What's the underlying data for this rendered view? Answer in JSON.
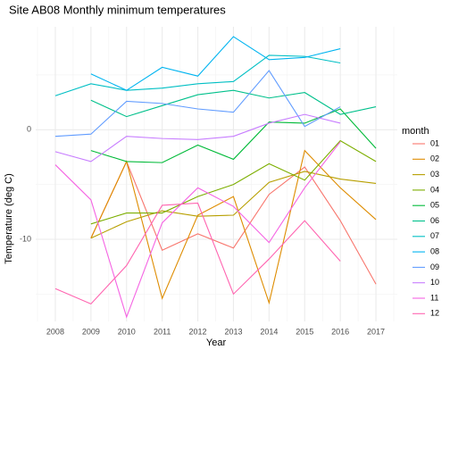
{
  "chart_data": {
    "type": "line",
    "title": "Site AB08 Monthly minimum temperatures",
    "xlabel": "Year",
    "ylabel": "Temperature (deg C)",
    "legend_title": "month",
    "legend": "right",
    "grid": true,
    "x": [
      2008,
      2009,
      2010,
      2011,
      2012,
      2013,
      2014,
      2015,
      2016,
      2017
    ],
    "xlim": [
      2007.45,
      2017.6
    ],
    "xticks": [
      2008,
      2009,
      2010,
      2011,
      2012,
      2013,
      2014,
      2015,
      2016,
      2017
    ],
    "ylim": [
      -17.5,
      9.4
    ],
    "yticks": [
      -10,
      0
    ],
    "series": [
      {
        "name": "01",
        "color": "#F8766D",
        "values": [
          null,
          -9.9,
          -2.9,
          -11.0,
          -9.5,
          -10.8,
          -5.9,
          -3.4,
          -8.3,
          -14.1
        ]
      },
      {
        "name": "02",
        "color": "#DE8C00",
        "values": [
          null,
          -9.9,
          -2.9,
          -15.4,
          -7.8,
          -6.1,
          -15.8,
          -1.9,
          -5.3,
          -8.2
        ]
      },
      {
        "name": "03",
        "color": "#B79F00",
        "values": [
          null,
          -9.9,
          -8.4,
          -7.4,
          -7.9,
          -7.8,
          -4.8,
          -3.8,
          -4.5,
          -4.9
        ]
      },
      {
        "name": "04",
        "color": "#7CAE00",
        "values": [
          null,
          -8.6,
          -7.6,
          -7.6,
          -6.1,
          -5.0,
          -3.1,
          -4.6,
          -1.0,
          -2.9
        ]
      },
      {
        "name": "05",
        "color": "#00BA38",
        "values": [
          null,
          -1.9,
          -2.9,
          -3.0,
          -1.4,
          -2.7,
          0.7,
          0.6,
          1.9,
          -1.7
        ]
      },
      {
        "name": "06",
        "color": "#00C08B",
        "values": [
          null,
          2.7,
          1.2,
          2.2,
          3.2,
          3.6,
          2.9,
          3.4,
          1.4,
          2.1
        ]
      },
      {
        "name": "07",
        "color": "#00BFC4",
        "values": [
          3.1,
          4.2,
          3.6,
          3.8,
          4.2,
          4.4,
          6.8,
          6.7,
          6.1,
          null
        ]
      },
      {
        "name": "08",
        "color": "#00B4F0",
        "values": [
          null,
          5.1,
          3.6,
          5.7,
          4.9,
          8.5,
          6.4,
          6.6,
          7.4,
          null
        ]
      },
      {
        "name": "09",
        "color": "#619CFF",
        "values": [
          -0.6,
          -0.4,
          2.6,
          2.4,
          1.9,
          1.6,
          5.4,
          0.3,
          2.1,
          null
        ]
      },
      {
        "name": "10",
        "color": "#C77CFF",
        "values": [
          -2.0,
          -2.9,
          -0.6,
          -0.8,
          -0.9,
          -0.6,
          0.6,
          1.4,
          0.6,
          null
        ]
      },
      {
        "name": "11",
        "color": "#F564E3",
        "values": [
          -3.2,
          -6.4,
          -17.1,
          -8.5,
          -5.3,
          -7.0,
          -10.3,
          -5.3,
          -1.1,
          null
        ]
      },
      {
        "name": "12",
        "color": "#FF64B0",
        "values": [
          -14.5,
          -15.9,
          -12.4,
          -6.9,
          -6.7,
          -15.0,
          -11.8,
          -8.3,
          -12.0,
          null
        ]
      }
    ]
  }
}
